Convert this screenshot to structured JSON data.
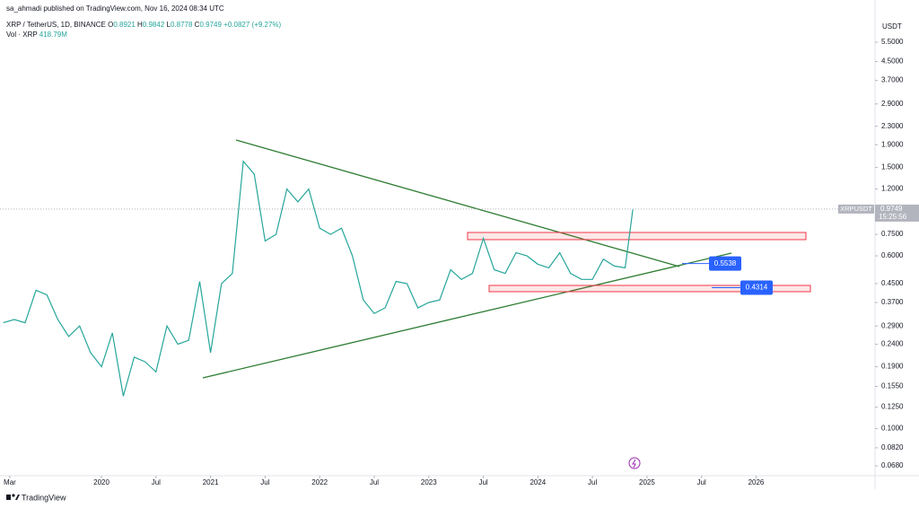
{
  "header": {
    "publisher": "sa_ahmadi published on TradingView.com, Nov 16, 2024 08:34 UTC",
    "symbol": "XRP / TetherUS, 1D, BINANCE",
    "ohlc": [
      {
        "key": "O",
        "value": "0.8921"
      },
      {
        "key": "H",
        "value": "0.9842"
      },
      {
        "key": "L",
        "value": "0.8778"
      },
      {
        "key": "C",
        "value": "0.9749"
      },
      {
        "key": "",
        "value": "+0.0827 (+9.27%)"
      }
    ],
    "volume_key": "Vol · XRP",
    "volume_value": "418.79M"
  },
  "chart_data": {
    "type": "line",
    "yscale": "log",
    "currency": "USDT",
    "xlim": [
      2019.07,
      2027.09
    ],
    "xticks": [
      {
        "value": 2019.16,
        "label": "Mar"
      },
      {
        "value": 2020,
        "label": "2020"
      },
      {
        "value": 2020.5,
        "label": "Jul"
      },
      {
        "value": 2021,
        "label": "2021"
      },
      {
        "value": 2021.5,
        "label": "Jul"
      },
      {
        "value": 2022,
        "label": "2022"
      },
      {
        "value": 2022.5,
        "label": "Jul"
      },
      {
        "value": 2023,
        "label": "2023"
      },
      {
        "value": 2023.5,
        "label": "Jul"
      },
      {
        "value": 2024,
        "label": "2024"
      },
      {
        "value": 2024.5,
        "label": "Jul"
      },
      {
        "value": 2025,
        "label": "2025"
      },
      {
        "value": 2025.5,
        "label": "Jul"
      },
      {
        "value": 2026,
        "label": "2026"
      }
    ],
    "ylim": [
      0.0614,
      8.52
    ],
    "yticks": [
      {
        "value": 5.5,
        "label": "5.5000"
      },
      {
        "value": 4.5,
        "label": "4.5000"
      },
      {
        "value": 3.7,
        "label": "3.7000"
      },
      {
        "value": 2.9,
        "label": "2.9000"
      },
      {
        "value": 2.3,
        "label": "2.3000"
      },
      {
        "value": 1.9,
        "label": "1.9000"
      },
      {
        "value": 1.5,
        "label": "1.5000"
      },
      {
        "value": 1.2,
        "label": "1.2000"
      },
      {
        "value": 0.75,
        "label": "0.7500"
      },
      {
        "value": 0.6,
        "label": "0.6000"
      },
      {
        "value": 0.45,
        "label": "0.4500"
      },
      {
        "value": 0.37,
        "label": "0.3700"
      },
      {
        "value": 0.29,
        "label": "0.2900"
      },
      {
        "value": 0.24,
        "label": "0.2400"
      },
      {
        "value": 0.19,
        "label": "0.1900"
      },
      {
        "value": 0.155,
        "label": "0.1550"
      },
      {
        "value": 0.125,
        "label": "0.1250"
      },
      {
        "value": 0.1,
        "label": "0.1000"
      },
      {
        "value": 0.082,
        "label": "0.0820"
      },
      {
        "value": 0.068,
        "label": "0.0680"
      }
    ],
    "series": [
      {
        "name": "XRPUSDT",
        "color": "#26a69a",
        "x": [
          2019.1,
          2019.2,
          2019.3,
          2019.4,
          2019.5,
          2019.6,
          2019.7,
          2019.8,
          2019.9,
          2020.0,
          2020.1,
          2020.2,
          2020.3,
          2020.4,
          2020.5,
          2020.6,
          2020.7,
          2020.8,
          2020.9,
          2021.0,
          2021.1,
          2021.2,
          2021.3,
          2021.4,
          2021.5,
          2021.6,
          2021.7,
          2021.8,
          2021.9,
          2022.0,
          2022.1,
          2022.2,
          2022.3,
          2022.4,
          2022.5,
          2022.6,
          2022.7,
          2022.8,
          2022.9,
          2023.0,
          2023.1,
          2023.2,
          2023.3,
          2023.4,
          2023.5,
          2023.6,
          2023.7,
          2023.8,
          2023.9,
          2024.0,
          2024.1,
          2024.2,
          2024.3,
          2024.4,
          2024.5,
          2024.6,
          2024.7,
          2024.8,
          2024.87
        ],
        "values": [
          0.3,
          0.31,
          0.3,
          0.42,
          0.4,
          0.31,
          0.26,
          0.29,
          0.22,
          0.19,
          0.27,
          0.14,
          0.21,
          0.2,
          0.18,
          0.29,
          0.24,
          0.25,
          0.46,
          0.22,
          0.45,
          0.5,
          1.6,
          1.4,
          0.7,
          0.75,
          1.2,
          1.05,
          1.2,
          0.8,
          0.75,
          0.8,
          0.6,
          0.38,
          0.33,
          0.35,
          0.46,
          0.45,
          0.35,
          0.37,
          0.38,
          0.52,
          0.47,
          0.5,
          0.72,
          0.52,
          0.5,
          0.62,
          0.6,
          0.55,
          0.53,
          0.62,
          0.5,
          0.47,
          0.47,
          0.58,
          0.54,
          0.53,
          0.97
        ]
      }
    ],
    "last_price": 0.9749,
    "countdown": "15:25:56",
    "price_labels": [
      0.5538,
      0.4314
    ]
  },
  "footer": {
    "brand": "TradingView"
  }
}
